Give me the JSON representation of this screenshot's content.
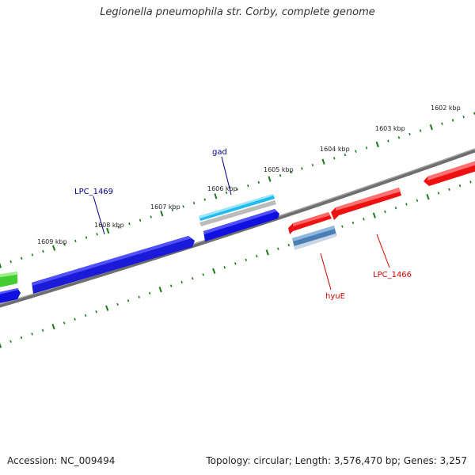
{
  "title": "Legionella pneumophila str. Corby, complete genome",
  "accession": "Accession: NC_009494",
  "summary": "Topology: circular; Length: 3,576,470 bp; Genes: 3,257",
  "ticks": [
    "1602 kbp",
    "1603 kbp",
    "1604 kbp",
    "1605 kbp",
    "1606 kbp",
    "1607 kbp",
    "1608 kbp",
    "1609 kbp"
  ],
  "genes": [
    {
      "name": "gad",
      "color": "#00008b",
      "strand": "forward"
    },
    {
      "name": "LPC_1469",
      "color": "#00008b",
      "strand": "forward"
    },
    {
      "name": "hyuE",
      "color": "#cc0000",
      "strand": "reverse"
    },
    {
      "name": "LPC_1466",
      "color": "#cc0000",
      "strand": "reverse"
    }
  ],
  "colors": {
    "forward_cds": "#1010e0",
    "forward_rna": "#22bbee",
    "forward_grey": "#bbbbbb",
    "reverse_cds": "#ee1111",
    "reverse_steel": "#4a7fb5",
    "green": "#44cc33",
    "backbone": "#808080",
    "tick": "#1a7a1a"
  }
}
